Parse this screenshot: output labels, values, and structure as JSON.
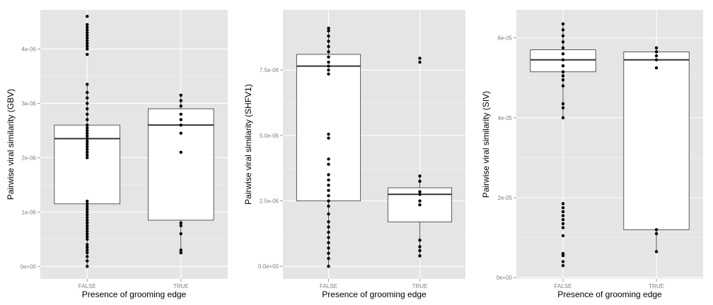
{
  "chart_data": [
    {
      "type": "boxplot",
      "title": "",
      "xlabel": "Presence of grooming edge",
      "ylabel": "Pairwise viral similarity (GBV)",
      "categories": [
        "FALSE",
        "TRUE"
      ],
      "ylim": [
        -2.3e-07,
        4.72e-06
      ],
      "yticks": [
        0,
        1e-06,
        2e-06,
        3e-06,
        4e-06
      ],
      "ytick_labels": [
        "0e+00",
        "1e-06",
        "2e-06",
        "3e-06",
        "4e-06"
      ],
      "boxes": [
        {
          "q1": 1.15e-06,
          "median": 2.35e-06,
          "q3": 2.6e-06,
          "whisker_low": 0.0,
          "whisker_high": 3.35e-06
        },
        {
          "q1": 8.5e-07,
          "median": 2.6e-06,
          "q3": 2.9e-06,
          "whisker_low": 2.5e-07,
          "whisker_high": 3.15e-06
        }
      ],
      "points": [
        [
          0.0,
          1e-07,
          1.8e-07,
          2.5e-07,
          3e-07,
          3.5e-07,
          4e-07,
          5e-07,
          5.5e-07,
          6e-07,
          6.5e-07,
          7e-07,
          7.5e-07,
          8e-07,
          8.5e-07,
          9e-07,
          9.5e-07,
          1e-06,
          1.05e-06,
          1.1e-06,
          1.15e-06,
          1.2e-06,
          2e-06,
          2.05e-06,
          2.1e-06,
          2.15e-06,
          2.2e-06,
          2.25e-06,
          2.3e-06,
          2.35e-06,
          2.4e-06,
          2.45e-06,
          2.5e-06,
          2.55e-06,
          2.6e-06,
          2.7e-06,
          2.8e-06,
          2.9e-06,
          3e-06,
          3.1e-06,
          3.2e-06,
          3.35e-06,
          3.9e-06,
          4e-06,
          4.05e-06,
          4.1e-06,
          4.15e-06,
          4.2e-06,
          4.25e-06,
          4.3e-06,
          4.35e-06,
          4.4e-06,
          4.45e-06,
          4.6e-06
        ],
        [
          2.5e-07,
          3e-07,
          6e-07,
          7.5e-07,
          8e-07,
          2.1e-06,
          2.45e-06,
          2.6e-06,
          2.7e-06,
          2.8e-06,
          2.95e-06,
          3.05e-06,
          3.15e-06
        ]
      ]
    },
    {
      "type": "boxplot",
      "title": "",
      "xlabel": "Presence of grooming edge",
      "ylabel": "Pairwise viral similarity (SHFV1)",
      "categories": [
        "FALSE",
        "TRUE"
      ],
      "ylim": [
        -4.8e-07,
        9.8e-06
      ],
      "yticks": [
        0,
        2.5e-06,
        5e-06,
        7.5e-06
      ],
      "ytick_labels": [
        "0.0e+00",
        "2.5e-06",
        "5.0e-06",
        "7.5e-06"
      ],
      "boxes": [
        {
          "q1": 2.5e-06,
          "median": 7.65e-06,
          "q3": 8.1e-06,
          "whisker_low": 0.0,
          "whisker_high": 9.1e-06
        },
        {
          "q1": 1.7e-06,
          "median": 2.75e-06,
          "q3": 3e-06,
          "whisker_low": 4e-07,
          "whisker_high": 3.5e-06
        }
      ],
      "points": [
        [
          0.0,
          3e-07,
          5e-07,
          7e-07,
          9e-07,
          1.1e-06,
          1.3e-06,
          1.5e-06,
          1.7e-06,
          2e-06,
          2.3e-06,
          2.5e-06,
          2.7e-06,
          2.9e-06,
          3.1e-06,
          3.3e-06,
          3.5e-06,
          3.9e-06,
          4.1e-06,
          4.9e-06,
          5.05e-06,
          7.35e-06,
          7.5e-06,
          7.65e-06,
          7.8e-06,
          8e-06,
          8.2e-06,
          8.4e-06,
          8.6e-06,
          8.8e-06,
          9e-06,
          9.1e-06
        ],
        [
          4e-07,
          6e-07,
          7.5e-07,
          1e-06,
          2.35e-06,
          2.5e-06,
          2.75e-06,
          2.85e-06,
          3.25e-06,
          3.45e-06,
          7.8e-06,
          7.95e-06
        ]
      ]
    },
    {
      "type": "boxplot",
      "title": "",
      "xlabel": "Presence of grooming edge",
      "ylabel": "Pairwise viral similarity (SIV)",
      "categories": [
        "FALSE",
        "TRUE"
      ],
      "ylim": [
        -3.2e-07,
        6.7e-05
      ],
      "yticks": [
        0,
        2e-05,
        4e-05,
        6e-05
      ],
      "ytick_labels": [
        "0e+00",
        "2e-05",
        "4e-05",
        "6e-05"
      ],
      "boxes": [
        {
          "q1": 5.15e-05,
          "median": 5.45e-05,
          "q3": 5.7e-05,
          "whisker_low": 4e-05,
          "whisker_high": 6.35e-05
        },
        {
          "q1": 1.2e-05,
          "median": 5.45e-05,
          "q3": 5.65e-05,
          "whisker_low": 6.5e-06,
          "whisker_high": 5.75e-05
        }
      ],
      "points": [
        [
          3e-06,
          4e-06,
          5.5e-06,
          6e-06,
          1.05e-05,
          1.25e-05,
          1.35e-05,
          1.45e-05,
          1.55e-05,
          1.65e-05,
          1.75e-05,
          1.85e-05,
          4e-05,
          4.25e-05,
          4.35e-05,
          4.8e-05,
          4.95e-05,
          5.05e-05,
          5.15e-05,
          5.3e-05,
          5.45e-05,
          5.6e-05,
          5.75e-05,
          5.9e-05,
          6.05e-05,
          6.2e-05,
          6.35e-05
        ],
        [
          6.5e-06,
          1.1e-05,
          1.2e-05,
          5.25e-05,
          5.45e-05,
          5.55e-05,
          5.65e-05,
          5.75e-05
        ]
      ]
    }
  ]
}
